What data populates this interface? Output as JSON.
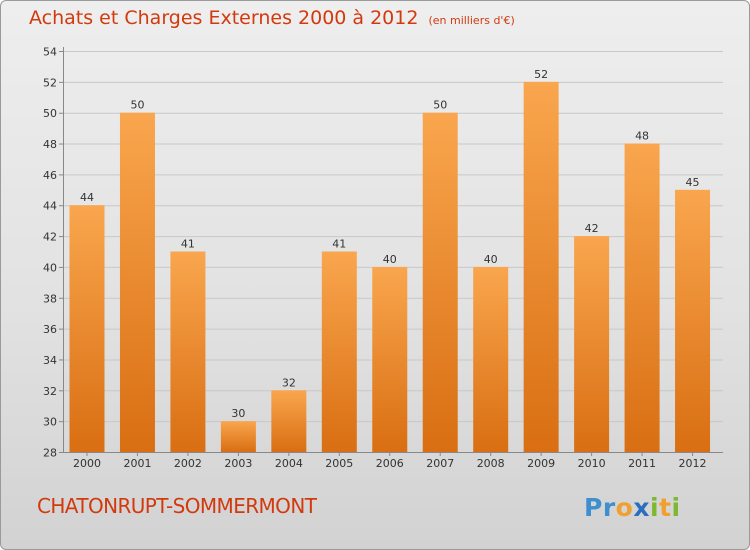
{
  "title": "Achats et Charges Externes 2000 à 2012",
  "unit": "(en milliers d'€)",
  "commune": "CHATONRUPT-SOMMERMONT",
  "logo": {
    "text": "Proxiti",
    "letters": [
      {
        "char": "P",
        "color": "#3d8fd0"
      },
      {
        "char": "r",
        "color": "#3d8fd0"
      },
      {
        "char": "o",
        "color": "#f0a030"
      },
      {
        "char": "x",
        "color": "#2a6fbf"
      },
      {
        "char": "i",
        "color": "#7cb830"
      },
      {
        "char": "t",
        "color": "#f0a030"
      },
      {
        "char": "i",
        "color": "#7cb830"
      }
    ]
  },
  "colors": {
    "title": "#d23a0e",
    "bar_light": "#f9a64e",
    "bar_dark": "#d96e12",
    "grid": "#c8c8c8",
    "axis": "#888888"
  },
  "chart_data": {
    "type": "bar",
    "title": "Achats et Charges Externes 2000 à 2012",
    "subtitle": "(en milliers d'€)",
    "categories": [
      "2000",
      "2001",
      "2002",
      "2003",
      "2004",
      "2005",
      "2006",
      "2007",
      "2008",
      "2009",
      "2010",
      "2011",
      "2012"
    ],
    "values": [
      44,
      50,
      41,
      30,
      32,
      41,
      40,
      50,
      40,
      52,
      42,
      48,
      45
    ],
    "data_labels": [
      "44",
      "50",
      "41",
      "30",
      "32",
      "41",
      "40",
      "50",
      "40",
      "52",
      "42",
      "48",
      "45"
    ],
    "ylim": [
      28,
      54
    ],
    "yticks": [
      28,
      30,
      32,
      34,
      36,
      38,
      40,
      42,
      44,
      46,
      48,
      50,
      52,
      54
    ],
    "grid": true,
    "legend": "none",
    "xlabel": "",
    "ylabel": ""
  }
}
